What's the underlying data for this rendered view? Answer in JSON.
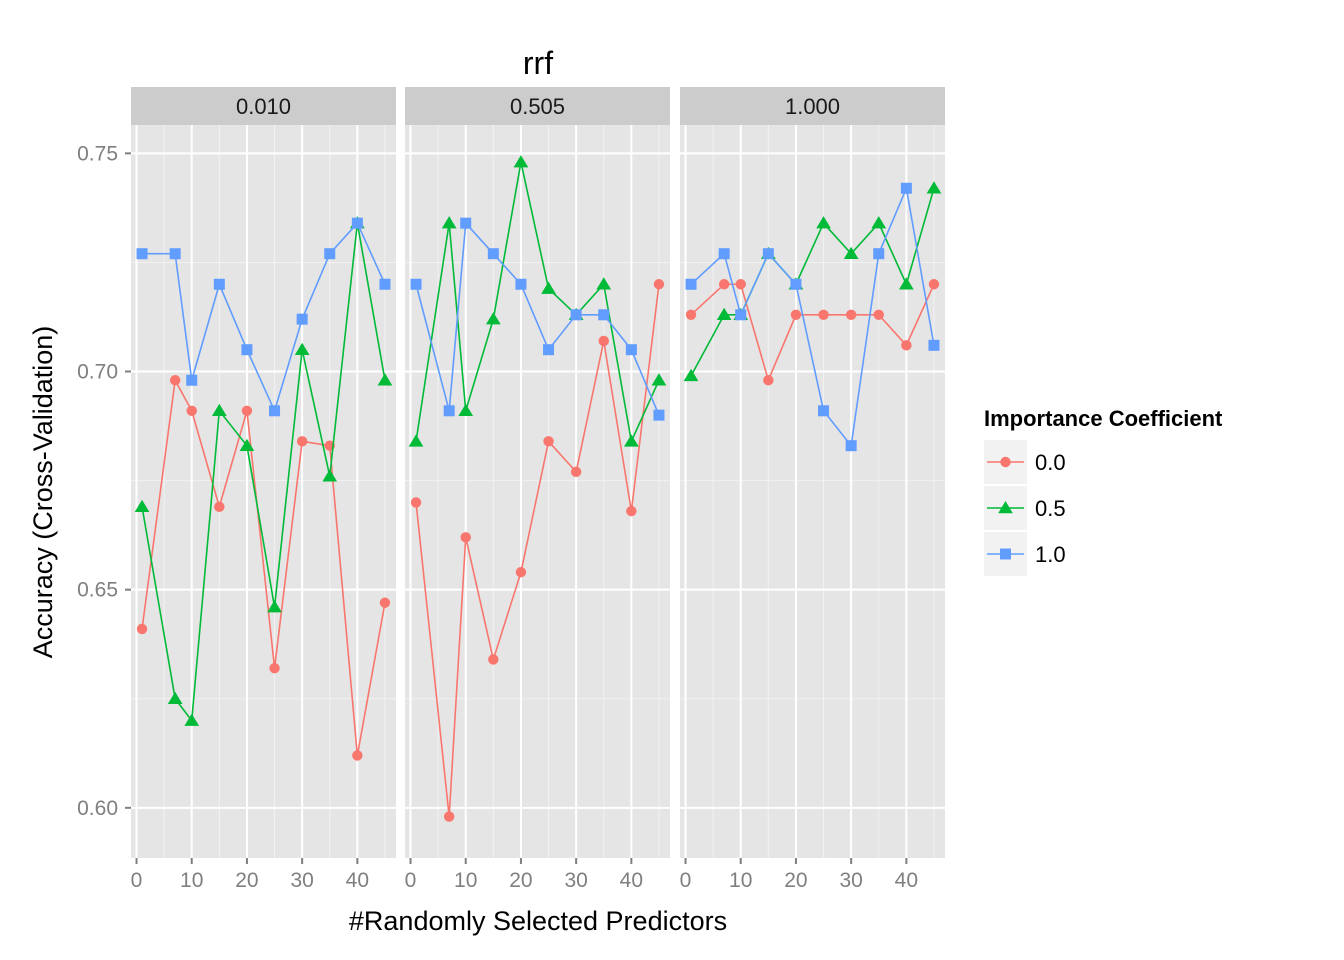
{
  "chart_data": {
    "type": "line",
    "title": "rrf",
    "xlabel": "#Randomly Selected Predictors",
    "ylabel": "Accuracy (Cross-Validation)",
    "xlim": [
      -1,
      47
    ],
    "ylim": [
      0.5885,
      0.7565
    ],
    "x_ticks": [
      0,
      10,
      20,
      30,
      40
    ],
    "y_ticks": [
      0.6,
      0.65,
      0.7,
      0.75
    ],
    "y_tick_labels": [
      "0.60",
      "0.65",
      "0.70",
      "0.75"
    ],
    "grid": true,
    "legend": {
      "title": "Importance Coefficient",
      "position": "right",
      "entries": [
        "0.0",
        "0.5",
        "1.0"
      ]
    },
    "colors": {
      "0.0": "#F8766D",
      "0.5": "#00BA38",
      "1.0": "#619CFF"
    },
    "markers": {
      "0.0": "circle",
      "0.5": "triangle",
      "1.0": "square"
    },
    "x": [
      1,
      7,
      10,
      15,
      20,
      25,
      30,
      35,
      40,
      45
    ],
    "panels": [
      {
        "label": "0.010",
        "series": [
          {
            "name": "0.0",
            "values": [
              0.641,
              0.698,
              0.691,
              0.669,
              0.691,
              0.632,
              0.684,
              0.683,
              0.612,
              0.647
            ]
          },
          {
            "name": "0.5",
            "values": [
              0.669,
              0.625,
              0.62,
              0.691,
              0.683,
              0.646,
              0.705,
              0.676,
              0.734,
              0.698
            ]
          },
          {
            "name": "1.0",
            "values": [
              0.727,
              0.727,
              0.698,
              0.72,
              0.705,
              0.691,
              0.712,
              0.727,
              0.734,
              0.72
            ]
          }
        ]
      },
      {
        "label": "0.505",
        "series": [
          {
            "name": "0.0",
            "values": [
              0.67,
              0.598,
              0.662,
              0.634,
              0.654,
              0.684,
              0.677,
              0.707,
              0.668,
              0.72
            ]
          },
          {
            "name": "0.5",
            "values": [
              0.684,
              0.734,
              0.691,
              0.712,
              0.748,
              0.719,
              0.713,
              0.72,
              0.684,
              0.698
            ]
          },
          {
            "name": "1.0",
            "values": [
              0.72,
              0.691,
              0.734,
              0.727,
              0.72,
              0.705,
              0.713,
              0.713,
              0.705,
              0.69
            ]
          }
        ]
      },
      {
        "label": "1.000",
        "series": [
          {
            "name": "0.0",
            "values": [
              0.713,
              0.72,
              0.72,
              0.698,
              0.713,
              0.713,
              0.713,
              0.713,
              0.706,
              0.72
            ]
          },
          {
            "name": "0.5",
            "values": [
              0.699,
              0.713,
              0.713,
              0.727,
              0.72,
              0.734,
              0.727,
              0.734,
              0.72,
              0.742
            ]
          },
          {
            "name": "1.0",
            "values": [
              0.72,
              0.727,
              0.713,
              0.727,
              0.72,
              0.691,
              0.683,
              0.727,
              0.742,
              0.706
            ]
          }
        ]
      }
    ]
  }
}
